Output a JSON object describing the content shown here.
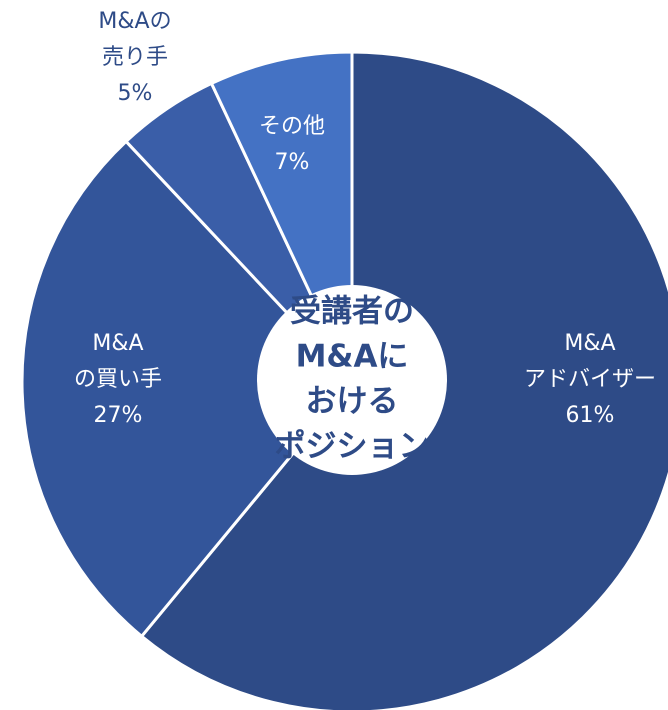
{
  "chart_data": {
    "type": "donut",
    "title": "受講者の\nM&Aに\nおける\nポジション",
    "categories": [
      "M&A\nアドバイザー",
      "M&A\nの買い手",
      "M&Aの\n売り手",
      "その他"
    ],
    "values": [
      61,
      27,
      5,
      7
    ],
    "value_labels": [
      "61%",
      "27%",
      "5%",
      "7%"
    ],
    "colors": [
      "#2e4b87",
      "#33559a",
      "#3a5ea8",
      "#4472c4"
    ]
  }
}
